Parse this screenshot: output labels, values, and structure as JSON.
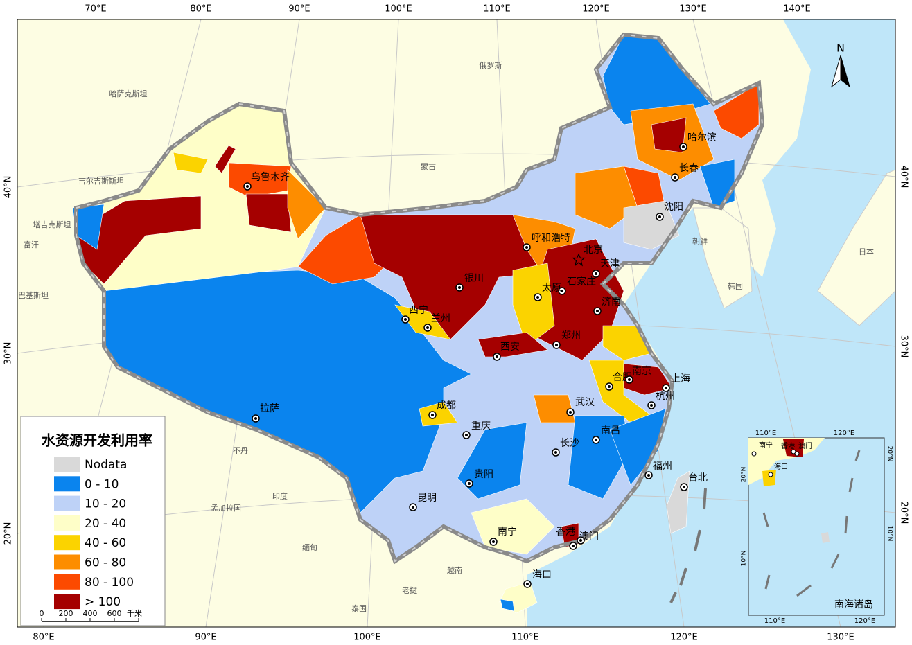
{
  "legend": {
    "title": "水资源开发利用率",
    "items": [
      {
        "label": "Nodata",
        "color": "#d9d9d9"
      },
      {
        "label": "0 - 10",
        "color": "#0a84ee"
      },
      {
        "label": "10 - 20",
        "color": "#bed2f7"
      },
      {
        "label": "20 - 40",
        "color": "#fefec8"
      },
      {
        "label": "40 - 60",
        "color": "#fbd300"
      },
      {
        "label": "60 - 80",
        "color": "#fd8d00"
      },
      {
        "label": "80 - 100",
        "color": "#fc4a00"
      },
      {
        "label": "> 100",
        "color": "#a50000"
      }
    ]
  },
  "scale_bar": {
    "labels": [
      "0",
      "200",
      "400",
      "600"
    ],
    "unit": "千米"
  },
  "graticule": {
    "top": [
      "70°E",
      "80°E",
      "90°E",
      "100°E",
      "110°E",
      "120°E",
      "130°E",
      "140°E"
    ],
    "bottom": [
      "80°E",
      "90°E",
      "100°E",
      "110°E",
      "120°E",
      "130°E"
    ],
    "left": [
      "40°N",
      "30°N",
      "20°N"
    ],
    "right": [
      "40°N",
      "30°N",
      "20°N"
    ]
  },
  "north_arrow": "N",
  "countries": [
    "俄罗斯",
    "哈萨克斯坦",
    "蒙古",
    "吉尔吉斯斯坦",
    "塔吉克斯坦",
    "富汗",
    "巴基斯坦",
    "不丹",
    "印度",
    "孟加拉国",
    "缅甸",
    "越南",
    "老挝",
    "泰国",
    "朝鲜",
    "韩国",
    "日本"
  ],
  "cities": [
    "乌鲁木齐",
    "拉萨",
    "西宁",
    "兰州",
    "银川",
    "呼和浩特",
    "北京",
    "天津",
    "石家庄",
    "太原",
    "济南",
    "郑州",
    "西安",
    "成都",
    "重庆",
    "贵阳",
    "昆明",
    "南宁",
    "海口",
    "长沙",
    "武汉",
    "南昌",
    "合肥",
    "南京",
    "上海",
    "杭州",
    "福州",
    "台北",
    "香港",
    "澳门",
    "沈阳",
    "长春",
    "哈尔滨"
  ],
  "inset": {
    "title": "南海诸岛",
    "cities": [
      "南宁",
      "香港",
      "澳门",
      "海口"
    ],
    "top": [
      "110°E",
      "120°E"
    ],
    "bottom": [
      "110°E",
      "120°E"
    ],
    "left": [
      "20°N",
      "10°N"
    ],
    "right": [
      "20°N",
      "10°N"
    ]
  }
}
